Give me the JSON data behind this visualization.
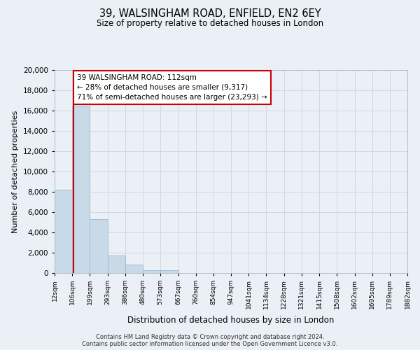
{
  "title": "39, WALSINGHAM ROAD, ENFIELD, EN2 6EY",
  "subtitle": "Size of property relative to detached houses in London",
  "xlabel": "Distribution of detached houses by size in London",
  "ylabel": "Number of detached properties",
  "bin_labels": [
    "12sqm",
    "106sqm",
    "199sqm",
    "293sqm",
    "386sqm",
    "480sqm",
    "573sqm",
    "667sqm",
    "760sqm",
    "854sqm",
    "947sqm",
    "1041sqm",
    "1134sqm",
    "1228sqm",
    "1321sqm",
    "1415sqm",
    "1508sqm",
    "1602sqm",
    "1695sqm",
    "1789sqm",
    "1882sqm"
  ],
  "bin_edges": [
    12,
    106,
    199,
    293,
    386,
    480,
    573,
    667,
    760,
    854,
    947,
    1041,
    1134,
    1228,
    1321,
    1415,
    1508,
    1602,
    1695,
    1789,
    1882
  ],
  "bar_heights": [
    8200,
    16500,
    5300,
    1750,
    800,
    300,
    300,
    0,
    0,
    0,
    0,
    0,
    0,
    0,
    0,
    0,
    0,
    0,
    0,
    0
  ],
  "bar_color": "#c8d9e8",
  "bar_edge_color": "#a0b8cc",
  "property_value": 112,
  "vline_color": "#cc0000",
  "annotation_title": "39 WALSINGHAM ROAD: 112sqm",
  "annotation_line1": "← 28% of detached houses are smaller (9,317)",
  "annotation_line2": "71% of semi-detached houses are larger (23,293) →",
  "annotation_box_color": "#ffffff",
  "annotation_box_edge_color": "#cc0000",
  "ylim": [
    0,
    20000
  ],
  "yticks": [
    0,
    2000,
    4000,
    6000,
    8000,
    10000,
    12000,
    14000,
    16000,
    18000,
    20000
  ],
  "grid_color": "#d0d8e0",
  "background_color": "#eaf0f6",
  "footer_line1": "Contains HM Land Registry data © Crown copyright and database right 2024.",
  "footer_line2": "Contains public sector information licensed under the Open Government Licence v3.0."
}
